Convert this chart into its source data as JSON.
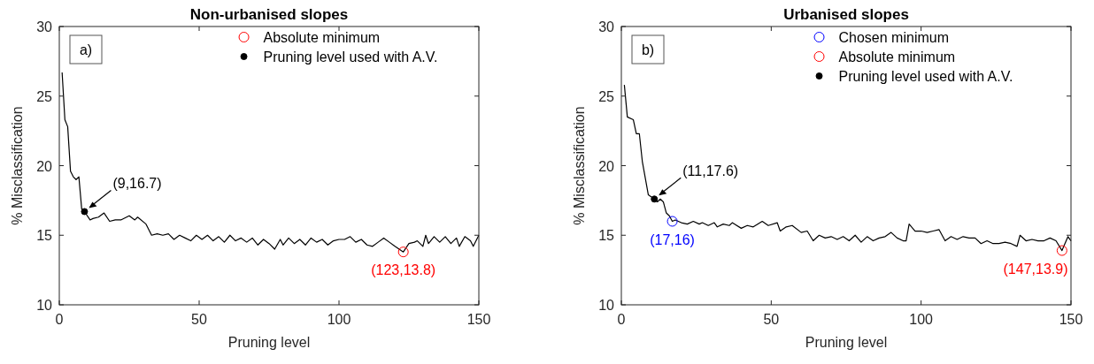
{
  "chart_data": [
    {
      "type": "line",
      "title": "Non-urbanised slopes",
      "xlabel": "Pruning level",
      "ylabel": "% Misclassification",
      "xlim": [
        0,
        150
      ],
      "xticks": [
        0,
        50,
        100,
        150
      ],
      "ylim": [
        10,
        30
      ],
      "yticks": [
        10,
        15,
        20,
        25,
        30
      ],
      "legend": "top right",
      "grid": false,
      "marker": "circle",
      "line_style": "solid",
      "annotations": [
        "a)",
        {
          "text": "(9,16.7)",
          "x": 9,
          "y": 16.7
        },
        {
          "text": "(123,13.8)",
          "x": 123,
          "y": 13.8
        }
      ],
      "series": [
        {
          "color": "#000000",
          "marker": "none",
          "x": [
            1,
            2,
            3,
            4,
            5,
            6,
            7,
            8,
            9,
            11,
            12,
            14,
            16,
            18,
            20,
            22,
            25,
            27,
            28,
            31,
            33,
            35,
            37,
            39,
            41,
            43,
            45,
            47,
            49,
            51,
            53,
            55,
            57,
            59,
            61,
            63,
            65,
            67,
            69,
            71,
            73,
            75,
            77,
            79,
            80,
            82,
            84,
            86,
            88,
            90,
            92,
            94,
            96,
            98,
            100,
            102,
            104,
            106,
            108,
            110,
            112,
            114,
            116,
            118,
            120,
            123,
            125,
            127,
            128,
            130,
            131,
            132,
            134,
            136,
            138,
            140,
            142,
            143,
            145,
            147,
            148,
            150
          ],
          "values": [
            26.7,
            23.3,
            22.8,
            19.6,
            19.2,
            19.0,
            19.2,
            16.9,
            16.7,
            16.1,
            16.2,
            16.3,
            16.6,
            16.0,
            16.1,
            16.1,
            16.4,
            16.1,
            16.3,
            15.8,
            15.0,
            15.1,
            15.0,
            15.1,
            14.7,
            15.0,
            14.8,
            14.6,
            15.0,
            14.7,
            15.0,
            14.6,
            14.9,
            14.5,
            15.0,
            14.6,
            14.8,
            14.5,
            14.8,
            14.3,
            14.7,
            14.4,
            14.0,
            14.7,
            14.3,
            14.8,
            14.4,
            14.7,
            14.3,
            14.8,
            14.5,
            14.7,
            14.3,
            14.6,
            14.7,
            14.7,
            14.9,
            14.5,
            14.7,
            14.3,
            14.2,
            14.5,
            14.8,
            14.5,
            14.2,
            13.8,
            14.4,
            14.5,
            14.6,
            14.2,
            15.0,
            14.4,
            14.9,
            14.5,
            14.9,
            14.4,
            14.8,
            14.2,
            14.9,
            14.6,
            14.2,
            15.0
          ]
        },
        {
          "type": "scatter",
          "name": "Absolute minimum",
          "color": "#ff0000",
          "x": [
            123
          ],
          "values": [
            13.8
          ]
        },
        {
          "type": "scatter",
          "name": "Pruning level used with A.V.",
          "color": "#000000",
          "x": [
            9
          ],
          "values": [
            16.7
          ]
        }
      ]
    },
    {
      "type": "line",
      "title": "Urbanised slopes",
      "xlabel": "Pruning level",
      "ylabel": "% Misclassification",
      "xlim": [
        0,
        150
      ],
      "xticks": [
        0,
        50,
        100,
        150
      ],
      "ylim": [
        10,
        30
      ],
      "yticks": [
        10,
        15,
        20,
        25,
        30
      ],
      "legend": "top right",
      "grid": false,
      "marker": "circle",
      "line_style": "solid",
      "annotations": [
        "b)",
        {
          "text": "(11,17.6)",
          "x": 11,
          "y": 17.6
        },
        {
          "text": "(17,16)",
          "x": 17,
          "y": 16
        },
        {
          "text": "(147,13.9)",
          "x": 147,
          "y": 13.9
        }
      ],
      "series": [
        {
          "color": "#000000",
          "marker": "none",
          "x": [
            1,
            2,
            4,
            5,
            6,
            7,
            9,
            11,
            12,
            13,
            14,
            15,
            16,
            17,
            18,
            20,
            22,
            24,
            26,
            27,
            29,
            31,
            32,
            34,
            36,
            37,
            40,
            42,
            44,
            47,
            49,
            52,
            53,
            55,
            57,
            60,
            62,
            64,
            66,
            68,
            70,
            72,
            74,
            76,
            78,
            80,
            82,
            84,
            86,
            88,
            90,
            92,
            94,
            95,
            96,
            98,
            100,
            102,
            104,
            106,
            108,
            110,
            112,
            114,
            116,
            118,
            120,
            122,
            124,
            126,
            128,
            130,
            132,
            133,
            135,
            137,
            139,
            141,
            143,
            145,
            147,
            149,
            150
          ],
          "values": [
            25.8,
            23.5,
            23.3,
            22.3,
            22.3,
            20.3,
            17.9,
            17.6,
            17.4,
            17.6,
            17.4,
            16.6,
            16.4,
            16,
            16.1,
            15.9,
            15.8,
            16.0,
            15.8,
            15.9,
            15.7,
            15.9,
            15.6,
            15.8,
            15.7,
            15.9,
            15.5,
            15.7,
            15.6,
            16.0,
            15.7,
            15.9,
            15.3,
            15.6,
            15.7,
            15.2,
            15.3,
            14.6,
            15.0,
            14.8,
            14.9,
            14.7,
            14.9,
            14.6,
            15.0,
            14.5,
            14.9,
            14.6,
            14.8,
            14.9,
            15.2,
            14.8,
            14.6,
            14.6,
            15.8,
            15.3,
            15.3,
            15.2,
            15.3,
            15.4,
            14.6,
            14.9,
            14.7,
            14.9,
            14.8,
            14.8,
            14.4,
            14.6,
            14.4,
            14.4,
            14.5,
            14.4,
            14.2,
            15.0,
            14.6,
            14.7,
            14.6,
            14.6,
            14.8,
            14.6,
            13.9,
            14.9,
            14.6
          ]
        },
        {
          "type": "scatter",
          "name": "Chosen minimum",
          "color": "#0000ff",
          "x": [
            17
          ],
          "values": [
            16
          ]
        },
        {
          "type": "scatter",
          "name": "Absolute minimum",
          "color": "#ff0000",
          "x": [
            147
          ],
          "values": [
            13.9
          ]
        },
        {
          "type": "scatter",
          "name": "Pruning level used with A.V.",
          "color": "#000000",
          "x": [
            11
          ],
          "values": [
            17.6
          ]
        }
      ]
    }
  ]
}
